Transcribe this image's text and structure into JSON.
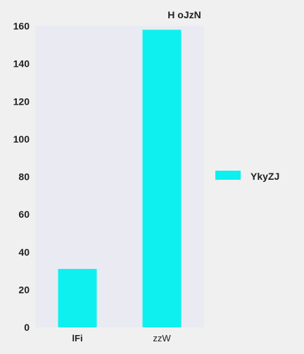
{
  "chart_data": {
    "type": "bar",
    "title": "H  oJzN",
    "xlabel": "",
    "ylabel": "",
    "categories": [
      "lFi",
      "zzW"
    ],
    "category_bold": [
      true,
      false
    ],
    "series": [
      {
        "name": "YkyZJ",
        "values": [
          31,
          158
        ]
      }
    ],
    "ylim": [
      0,
      160
    ],
    "yticks": [
      0,
      20,
      40,
      60,
      80,
      100,
      120,
      140,
      160
    ],
    "grid": false,
    "legend_position": "right",
    "colors": {
      "bar": "#0ef0ef",
      "plot_background": "#eaeaf2",
      "page_background": "#f0f0f0",
      "text": "#222222"
    }
  }
}
